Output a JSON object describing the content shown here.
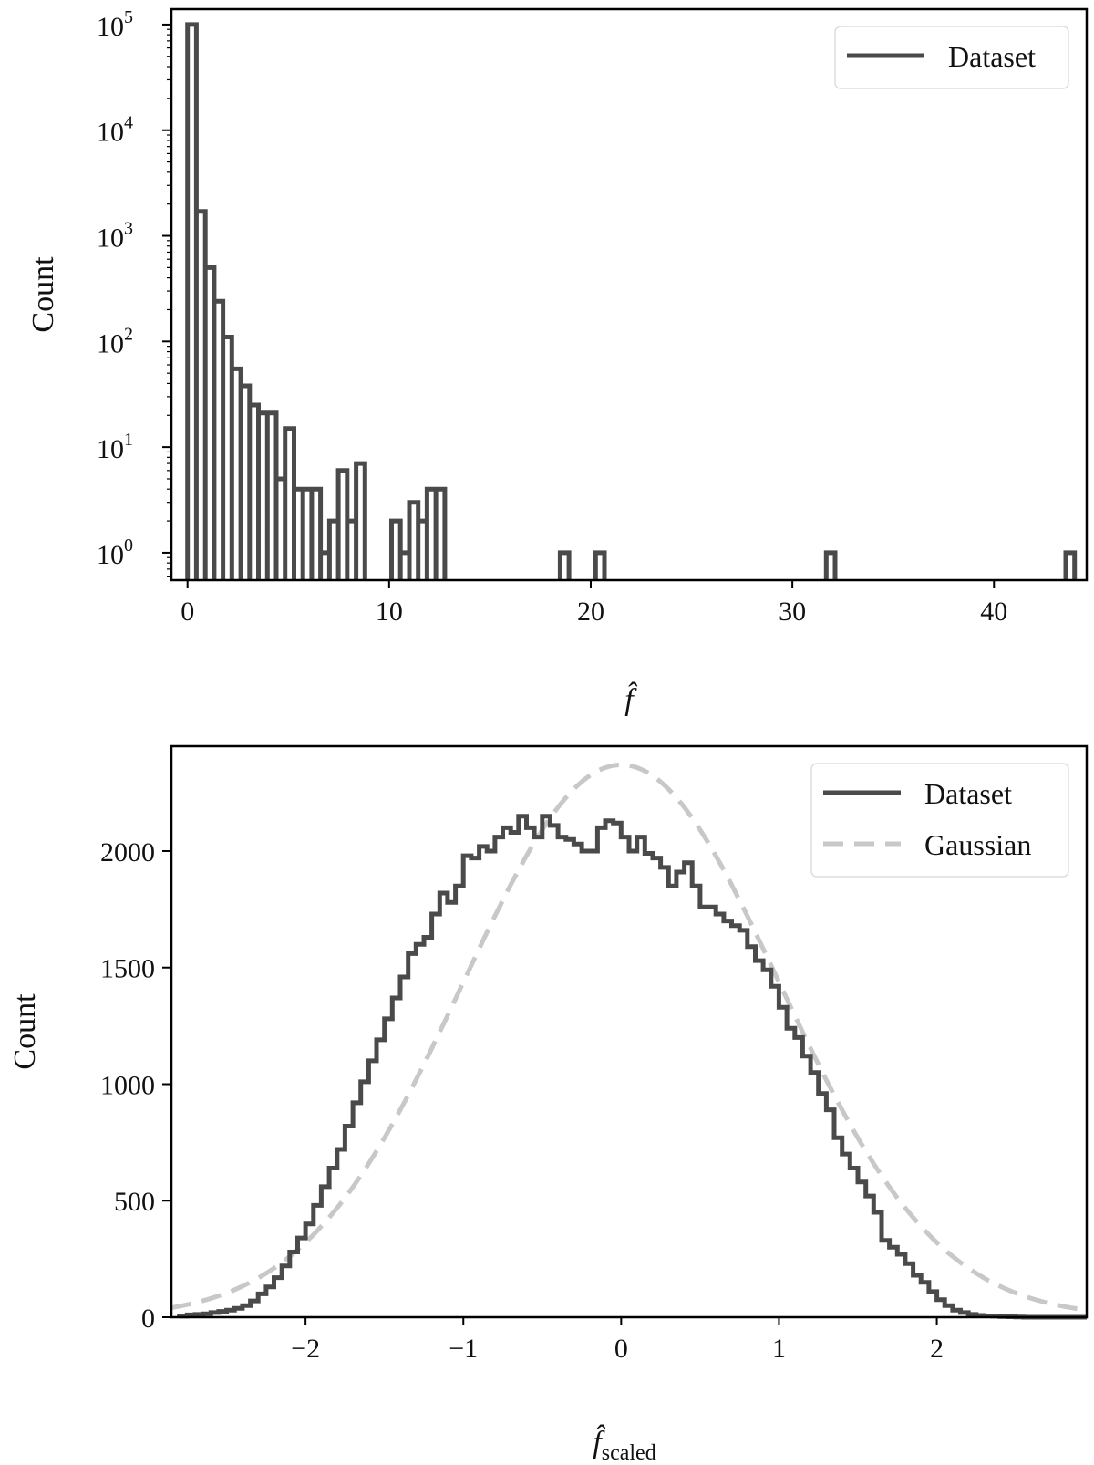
{
  "chart_data": [
    {
      "type": "histogram",
      "title": "",
      "xlabel": "f̂",
      "ylabel": "Count",
      "yscale": "log",
      "xlim": [
        -0.8,
        44.6
      ],
      "ylim": [
        0.55,
        140000
      ],
      "xticks": [
        0,
        10,
        20,
        30,
        40
      ],
      "yticks": [
        {
          "base": "10",
          "exp": "0",
          "value": 1
        },
        {
          "base": "10",
          "exp": "1",
          "value": 10
        },
        {
          "base": "10",
          "exp": "2",
          "value": 100
        },
        {
          "base": "10",
          "exp": "3",
          "value": 1000
        },
        {
          "base": "10",
          "exp": "4",
          "value": 10000
        },
        {
          "base": "10",
          "exp": "5",
          "value": 100000
        }
      ],
      "grid": false,
      "legend_position": "top-right",
      "series": [
        {
          "name": "Dataset",
          "color": "#4a4a4a",
          "style": "step",
          "bin_width": 0.44,
          "bins": [
            [
              0.0,
              100000
            ],
            [
              0.44,
              1700
            ],
            [
              0.88,
              500
            ],
            [
              1.32,
              240
            ],
            [
              1.76,
              110
            ],
            [
              2.2,
              55
            ],
            [
              2.64,
              38
            ],
            [
              3.08,
              25
            ],
            [
              3.52,
              21
            ],
            [
              3.96,
              21
            ],
            [
              4.4,
              5
            ],
            [
              4.84,
              15
            ],
            [
              5.28,
              4
            ],
            [
              5.72,
              4
            ],
            [
              6.16,
              4
            ],
            [
              6.6,
              1
            ],
            [
              7.04,
              2
            ],
            [
              7.48,
              6
            ],
            [
              7.92,
              2
            ],
            [
              8.36,
              7
            ],
            [
              10.12,
              2
            ],
            [
              10.56,
              1
            ],
            [
              11.0,
              3
            ],
            [
              11.44,
              2
            ],
            [
              11.88,
              4
            ],
            [
              12.32,
              4
            ],
            [
              18.48,
              1
            ],
            [
              20.24,
              1
            ],
            [
              31.68,
              1
            ],
            [
              43.56,
              1
            ]
          ]
        }
      ]
    },
    {
      "type": "histogram",
      "title": "",
      "xlabel": "f̂scaled",
      "ylabel": "Count",
      "yscale": "linear",
      "xlim": [
        -2.85,
        2.95
      ],
      "ylim": [
        0,
        2450
      ],
      "xticks": [
        {
          "label": "−2",
          "value": -2
        },
        {
          "label": "−1",
          "value": -1
        },
        {
          "label": "0",
          "value": 0
        },
        {
          "label": "1",
          "value": 1
        },
        {
          "label": "2",
          "value": 2
        }
      ],
      "yticks": [
        0,
        500,
        1000,
        1500,
        2000
      ],
      "grid": false,
      "legend_position": "top-right",
      "series": [
        {
          "name": "Dataset",
          "color": "#4a4a4a",
          "style": "step",
          "bin_start": -2.8,
          "bin_width": 0.05,
          "values": [
            5,
            10,
            12,
            15,
            20,
            25,
            30,
            38,
            50,
            70,
            100,
            130,
            170,
            220,
            280,
            340,
            400,
            480,
            560,
            640,
            720,
            820,
            920,
            1010,
            1100,
            1190,
            1280,
            1370,
            1460,
            1560,
            1600,
            1630,
            1730,
            1820,
            1780,
            1850,
            1980,
            1970,
            2020,
            2000,
            2060,
            2100,
            2080,
            2150,
            2100,
            2060,
            2150,
            2110,
            2060,
            2050,
            2030,
            2000,
            2000,
            2100,
            2130,
            2120,
            2060,
            2000,
            2060,
            1990,
            1970,
            1930,
            1850,
            1910,
            1950,
            1850,
            1760,
            1760,
            1730,
            1700,
            1680,
            1660,
            1590,
            1530,
            1490,
            1420,
            1330,
            1240,
            1200,
            1120,
            1050,
            960,
            890,
            770,
            700,
            640,
            580,
            520,
            450,
            330,
            300,
            270,
            230,
            180,
            150,
            110,
            75,
            50,
            30,
            20,
            12,
            8,
            6,
            5,
            3,
            2,
            1,
            0,
            0,
            0,
            0,
            0,
            0,
            0,
            0
          ]
        },
        {
          "name": "Gaussian",
          "color": "#c8c8c8",
          "style": "dashed",
          "mu": 0,
          "sigma": 1,
          "peak": 2370
        }
      ]
    }
  ]
}
